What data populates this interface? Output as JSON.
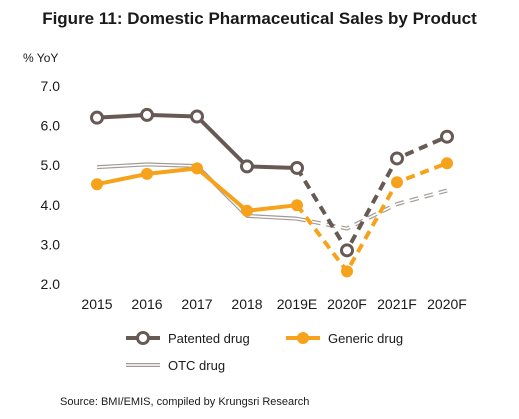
{
  "chart_data": {
    "type": "line",
    "title": "Figure 11: Domestic Pharmaceutical Sales by Product",
    "ylabel": "% YoY",
    "ylim": [
      2.0,
      7.0
    ],
    "yticks": [
      "2.0",
      "3.0",
      "4.0",
      "5.0",
      "6.0",
      "7.0"
    ],
    "grid": false,
    "categories": [
      "2015",
      "2016",
      "2017",
      "2018",
      "2019E",
      "2020F",
      "2021F",
      "2020F"
    ],
    "solid_until_index": 4,
    "series": [
      {
        "name": "Patented drug",
        "values": [
          6.2,
          6.27,
          6.23,
          4.97,
          4.93,
          2.85,
          5.17,
          5.72
        ],
        "color": "#675a55",
        "marker": "open-circle"
      },
      {
        "name": "Generic drug",
        "values": [
          4.52,
          4.78,
          4.92,
          3.85,
          3.99,
          2.32,
          4.57,
          5.05
        ],
        "color": "#f7a21b",
        "marker": "filled-circle"
      },
      {
        "name": "OTC drug",
        "values": [
          4.95,
          5.02,
          4.98,
          3.72,
          3.65,
          3.4,
          4.02,
          4.36
        ],
        "color": "#a39a96",
        "marker": "none"
      }
    ],
    "legend_position": "bottom",
    "source": "Source: BMI/EMIS,  compiled by Krungsri Research"
  }
}
